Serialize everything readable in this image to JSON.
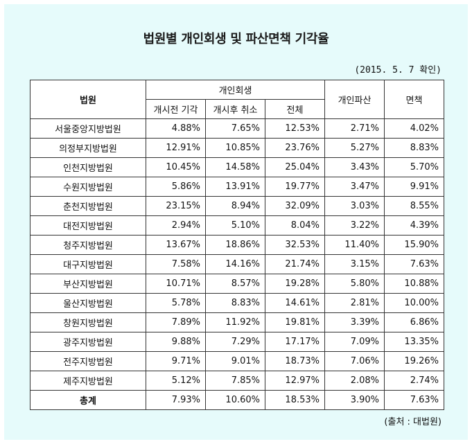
{
  "title": "법원별 개인회생 및 파산면책 기각율",
  "date_note": "(2015. 5. 7 확인)",
  "source_note": "(출처 : 대법원)",
  "headers": {
    "court": "법원",
    "personal_rehab": "개인회생",
    "before_start": "개시전 기각",
    "after_start": "개시후 취소",
    "total": "전체",
    "bankruptcy": "개인파산",
    "discharge": "면책"
  },
  "rows": [
    {
      "court": "서울중앙지방법원",
      "before": "4.88%",
      "after": "7.65%",
      "total": "12.53%",
      "bankruptcy": "2.71%",
      "discharge": "4.02%"
    },
    {
      "court": "의정부지방법원",
      "before": "12.91%",
      "after": "10.85%",
      "total": "23.76%",
      "bankruptcy": "5.27%",
      "discharge": "8.83%"
    },
    {
      "court": "인천지방법원",
      "before": "10.45%",
      "after": "14.58%",
      "total": "25.04%",
      "bankruptcy": "3.43%",
      "discharge": "5.70%"
    },
    {
      "court": "수원지방법원",
      "before": "5.86%",
      "after": "13.91%",
      "total": "19.77%",
      "bankruptcy": "3.47%",
      "discharge": "9.91%"
    },
    {
      "court": "춘천지방법원",
      "before": "23.15%",
      "after": "8.94%",
      "total": "32.09%",
      "bankruptcy": "3.03%",
      "discharge": "8.55%"
    },
    {
      "court": "대전지방법원",
      "before": "2.94%",
      "after": "5.10%",
      "total": "8.04%",
      "bankruptcy": "3.22%",
      "discharge": "4.39%"
    },
    {
      "court": "청주지방법원",
      "before": "13.67%",
      "after": "18.86%",
      "total": "32.53%",
      "bankruptcy": "11.40%",
      "discharge": "15.90%"
    },
    {
      "court": "대구지방법원",
      "before": "7.58%",
      "after": "14.16%",
      "total": "21.74%",
      "bankruptcy": "3.15%",
      "discharge": "7.63%"
    },
    {
      "court": "부산지방법원",
      "before": "10.71%",
      "after": "8.57%",
      "total": "19.28%",
      "bankruptcy": "5.80%",
      "discharge": "10.88%"
    },
    {
      "court": "울산지방법원",
      "before": "5.78%",
      "after": "8.83%",
      "total": "14.61%",
      "bankruptcy": "2.81%",
      "discharge": "10.00%"
    },
    {
      "court": "창원지방법원",
      "before": "7.89%",
      "after": "11.92%",
      "total": "19.81%",
      "bankruptcy": "3.39%",
      "discharge": "6.86%"
    },
    {
      "court": "광주지방법원",
      "before": "9.88%",
      "after": "7.29%",
      "total": "17.17%",
      "bankruptcy": "7.09%",
      "discharge": "13.35%"
    },
    {
      "court": "전주지방법원",
      "before": "9.71%",
      "after": "9.01%",
      "total": "18.73%",
      "bankruptcy": "7.06%",
      "discharge": "19.26%"
    },
    {
      "court": "제주지방법원",
      "before": "5.12%",
      "after": "7.85%",
      "total": "12.97%",
      "bankruptcy": "2.08%",
      "discharge": "2.74%"
    }
  ],
  "total_row": {
    "court": "총계",
    "before": "7.93%",
    "after": "10.60%",
    "total": "18.53%",
    "bankruptcy": "3.90%",
    "discharge": "7.63%"
  }
}
